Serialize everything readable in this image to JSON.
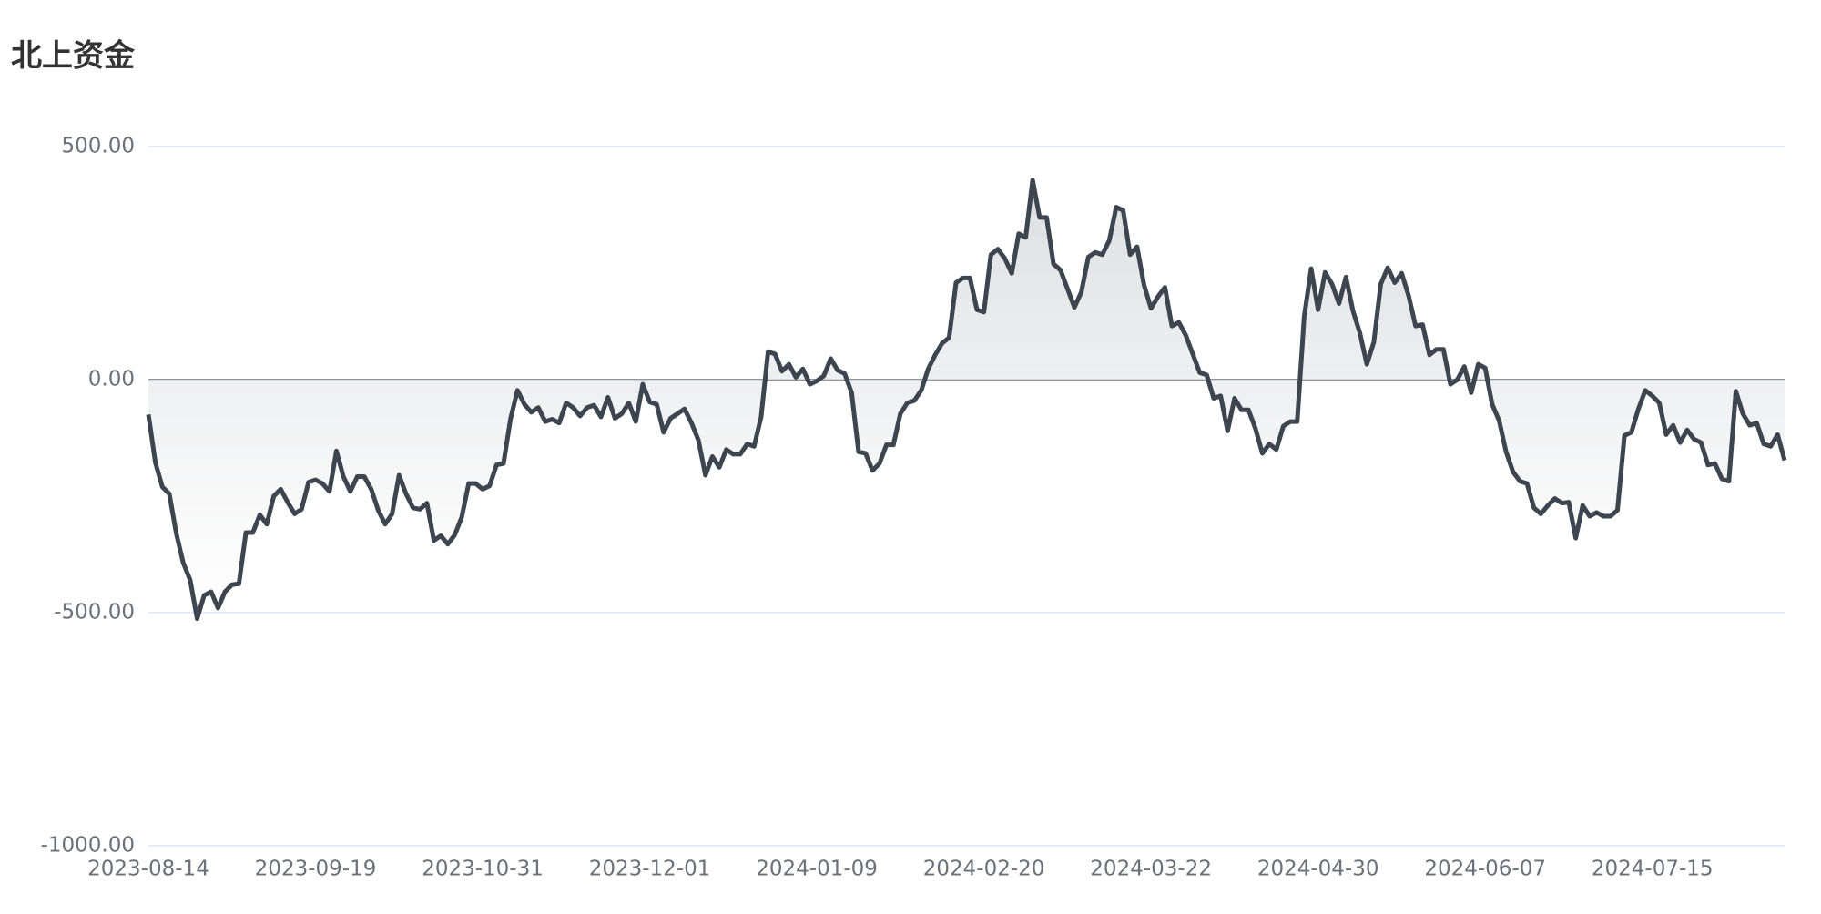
{
  "chart_data": {
    "type": "area-line",
    "title": "北上资金",
    "color": "#3d4550",
    "ylim": [
      -1000,
      500
    ],
    "yticks": [
      {
        "value": -1000,
        "label": "-1000.00"
      },
      {
        "value": -500,
        "label": "-500.00"
      },
      {
        "value": 0,
        "label": "0.00"
      },
      {
        "value": 500,
        "label": "500.00"
      }
    ],
    "grid": true,
    "categories": [
      "2023-08-14",
      null,
      null,
      null,
      null,
      null,
      null,
      null,
      null,
      null,
      null,
      null,
      null,
      null,
      null,
      null,
      null,
      null,
      null,
      null,
      null,
      null,
      null,
      null,
      "2023-09-19",
      null,
      null,
      null,
      null,
      null,
      null,
      null,
      null,
      null,
      null,
      null,
      null,
      null,
      null,
      null,
      null,
      null,
      null,
      null,
      null,
      null,
      null,
      null,
      "2023-10-31",
      null,
      null,
      null,
      null,
      null,
      null,
      null,
      null,
      null,
      null,
      null,
      null,
      null,
      null,
      null,
      null,
      null,
      null,
      null,
      null,
      null,
      null,
      null,
      "2023-12-01",
      null,
      null,
      null,
      null,
      null,
      null,
      null,
      null,
      null,
      null,
      null,
      null,
      null,
      null,
      null,
      null,
      null,
      null,
      null,
      null,
      null,
      null,
      null,
      "2024-01-09",
      null,
      null,
      null,
      null,
      null,
      null,
      null,
      null,
      null,
      null,
      null,
      null,
      null,
      null,
      null,
      null,
      null,
      null,
      null,
      null,
      null,
      null,
      null,
      "2024-02-20",
      null,
      null,
      null,
      null,
      null,
      null,
      null,
      null,
      null,
      null,
      null,
      null,
      null,
      null,
      null,
      null,
      null,
      null,
      null,
      null,
      null,
      null,
      null,
      "2024-03-22",
      null,
      null,
      null,
      null,
      null,
      null,
      null,
      null,
      null,
      null,
      null,
      null,
      null,
      null,
      null,
      null,
      null,
      null,
      null,
      null,
      null,
      null,
      null,
      "2024-04-30",
      null,
      null,
      null,
      null,
      null,
      null,
      null,
      null,
      null,
      null,
      null,
      null,
      null,
      null,
      null,
      null,
      null,
      null,
      null,
      null,
      null,
      null,
      null,
      "2024-06-07",
      null,
      null,
      null,
      null,
      null,
      null,
      null,
      null,
      null,
      null,
      null,
      null,
      null,
      null,
      null,
      null,
      null,
      null,
      null,
      null,
      null,
      null,
      null,
      "2024-07-15",
      null,
      null,
      null,
      null,
      null,
      null,
      null,
      null,
      null,
      null,
      null,
      null,
      null,
      null,
      null,
      null,
      null,
      null,
      null
    ],
    "values": [
      -75,
      -178,
      -230,
      -245,
      -330,
      -393,
      -430,
      -513,
      -463,
      -455,
      -490,
      -455,
      -440,
      -438,
      -328,
      -328,
      -290,
      -310,
      -250,
      -235,
      -263,
      -288,
      -278,
      -220,
      -215,
      -223,
      -240,
      -153,
      -208,
      -240,
      -208,
      -208,
      -235,
      -280,
      -310,
      -288,
      -205,
      -245,
      -275,
      -278,
      -265,
      -345,
      -335,
      -353,
      -333,
      -295,
      -223,
      -223,
      -235,
      -228,
      -183,
      -180,
      -85,
      -23,
      -53,
      -70,
      -60,
      -90,
      -85,
      -93,
      -50,
      -60,
      -78,
      -60,
      -55,
      -80,
      -38,
      -83,
      -73,
      -50,
      -90,
      -10,
      -48,
      -53,
      -113,
      -83,
      -73,
      -63,
      -93,
      -130,
      -205,
      -165,
      -188,
      -150,
      -160,
      -160,
      -138,
      -143,
      -80,
      60,
      55,
      18,
      33,
      5,
      23,
      -10,
      -3,
      8,
      45,
      20,
      13,
      -28,
      -155,
      -158,
      -195,
      -180,
      -140,
      -140,
      -73,
      -50,
      -45,
      -23,
      23,
      53,
      78,
      90,
      208,
      218,
      218,
      150,
      145,
      268,
      280,
      260,
      228,
      313,
      305,
      428,
      348,
      348,
      248,
      235,
      195,
      155,
      188,
      263,
      273,
      268,
      298,
      370,
      363,
      268,
      285,
      203,
      153,
      178,
      198,
      115,
      123,
      95,
      55,
      15,
      10,
      -40,
      -35,
      -110,
      -40,
      -65,
      -65,
      -105,
      -158,
      -138,
      -150,
      -100,
      -90,
      -90,
      135,
      238,
      150,
      230,
      205,
      163,
      220,
      148,
      100,
      33,
      80,
      205,
      240,
      208,
      228,
      180,
      115,
      118,
      53,
      65,
      65,
      -10,
      0,
      28,
      -28,
      33,
      25,
      -53,
      -88,
      -155,
      -198,
      -218,
      -223,
      -275,
      -288,
      -270,
      -255,
      -265,
      -263,
      -340,
      -270,
      -293,
      -285,
      -293,
      -293,
      -280,
      -120,
      -113,
      -63,
      -23,
      -35,
      -50,
      -118,
      -98,
      -135,
      -108,
      -128,
      -135,
      -183,
      -180,
      -213,
      -218,
      -25,
      -73,
      -98,
      -93,
      -138,
      -143,
      -118,
      -173
    ]
  }
}
